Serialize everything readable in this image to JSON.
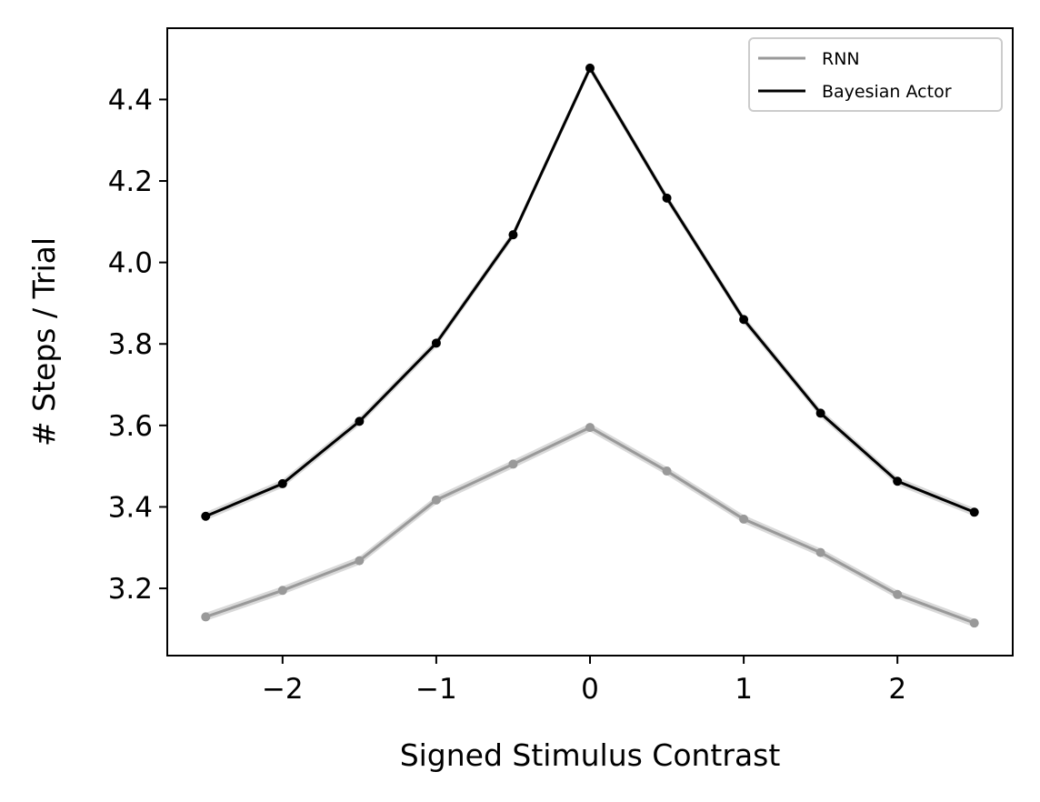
{
  "chart_data": {
    "type": "line",
    "xlabel": "Signed Stimulus Contrast",
    "ylabel": "# Steps / Trial",
    "xlim": [
      -2.75,
      2.75
    ],
    "ylim": [
      3.035,
      4.575
    ],
    "x_ticks": [
      -2,
      -1,
      0,
      1,
      2
    ],
    "x_tick_labels": [
      "−2",
      "−1",
      "0",
      "1",
      "2"
    ],
    "y_ticks": [
      3.2,
      3.4,
      3.6,
      3.8,
      4.0,
      4.2,
      4.4
    ],
    "y_tick_labels": [
      "3.2",
      "3.4",
      "3.6",
      "3.8",
      "4.0",
      "4.2",
      "4.4"
    ],
    "grid": false,
    "legend": "top-right",
    "x": [
      -2.5,
      -2.0,
      -1.5,
      -1.0,
      -0.5,
      0.0,
      0.5,
      1.0,
      1.5,
      2.0,
      2.5
    ],
    "series": [
      {
        "name": "RNN",
        "color": "#999999",
        "values": [
          3.13,
          3.195,
          3.268,
          3.417,
          3.505,
          3.595,
          3.488,
          3.37,
          3.288,
          3.185,
          3.115
        ]
      },
      {
        "name": "Bayesian Actor",
        "color": "#000000",
        "values": [
          3.377,
          3.457,
          3.61,
          3.802,
          4.068,
          4.477,
          4.158,
          3.86,
          3.63,
          3.463,
          3.387
        ]
      }
    ],
    "band_color": "#d9d9d9"
  }
}
